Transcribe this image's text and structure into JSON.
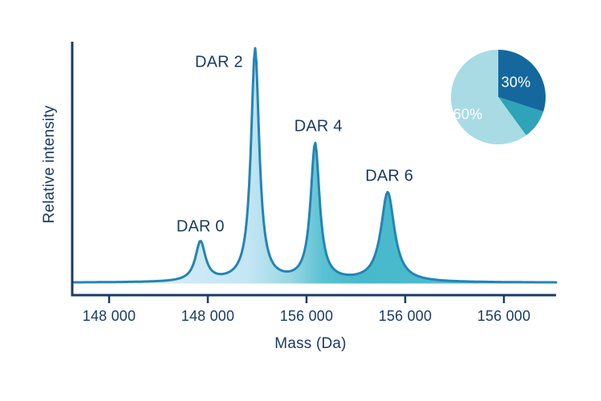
{
  "chart_data": [
    {
      "type": "area",
      "subtype": "mass-spectrum",
      "title": "",
      "xlabel": "Mass (Da)",
      "ylabel": "Relative intensity",
      "x_tick_labels": [
        "148 000",
        "148 000",
        "156 000",
        "156 000",
        "156 000"
      ],
      "grid": false,
      "legend": false,
      "peaks": [
        {
          "label": "DAR 0",
          "axis_fraction": 0.265,
          "relative_intensity": 0.17,
          "hwhm_fraction": 0.0125
        },
        {
          "label": "DAR 2",
          "axis_fraction": 0.378,
          "relative_intensity": 1.0,
          "hwhm_fraction": 0.0103
        },
        {
          "label": "DAR 4",
          "axis_fraction": 0.502,
          "relative_intensity": 0.59,
          "hwhm_fraction": 0.0112
        },
        {
          "label": "DAR 6",
          "axis_fraction": 0.652,
          "relative_intensity": 0.385,
          "hwhm_fraction": 0.0168
        }
      ],
      "colors": {
        "axis": "#1a3b66",
        "text": "#1a3b66",
        "curve_stroke": "#2484b6",
        "fill_gradient": [
          {
            "offset": 0.0,
            "color": "#e2f1f9"
          },
          {
            "offset": 0.36,
            "color": "#c6e6f5"
          },
          {
            "offset": 0.45,
            "color": "#9ad8e3"
          },
          {
            "offset": 0.52,
            "color": "#58c1d2"
          },
          {
            "offset": 0.6,
            "color": "#47b9cb"
          },
          {
            "offset": 1.0,
            "color": "#53bfcf"
          }
        ]
      }
    },
    {
      "type": "pie",
      "start_angle_deg": 0,
      "clockwise": true,
      "slices": [
        {
          "label": "30%",
          "value": 30,
          "color": "#15689e"
        },
        {
          "label": "",
          "value": 10,
          "color": "#2fa3b8"
        },
        {
          "label": "60%",
          "value": 60,
          "color": "#a9dbe4"
        }
      ],
      "label_color": "#ffffff"
    }
  ]
}
